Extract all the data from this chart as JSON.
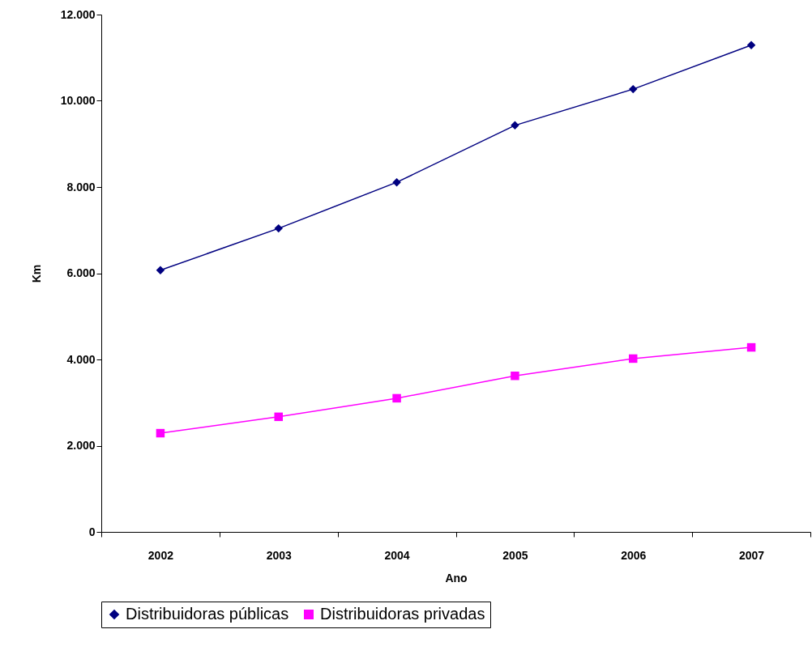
{
  "chart_data": {
    "type": "line",
    "xlabel": "Ano",
    "ylabel": "Km",
    "categories": [
      "2002",
      "2003",
      "2004",
      "2005",
      "2006",
      "2007"
    ],
    "series": [
      {
        "name": "Distribuidoras públicas",
        "color": "#000080",
        "marker": "diamond",
        "values": [
          6070,
          7040,
          8110,
          9430,
          10270,
          11290
        ]
      },
      {
        "name": "Distribuidoras privadas",
        "color": "#ff00ff",
        "marker": "square",
        "values": [
          2290,
          2670,
          3100,
          3620,
          4020,
          4280
        ]
      }
    ],
    "ylim": [
      0,
      12000
    ],
    "yticks": [
      0,
      {
        "value": 2000,
        "label": "2.000"
      },
      {
        "value": 4000,
        "label": "4.000"
      },
      {
        "value": 6000,
        "label": "6.000"
      },
      {
        "value": 8000,
        "label": "8.000"
      },
      {
        "value": 10000,
        "label": "10.000"
      },
      {
        "value": 12000,
        "label": "12.000"
      }
    ],
    "grid": false,
    "legend": "bottom",
    "line_style": "solid"
  }
}
